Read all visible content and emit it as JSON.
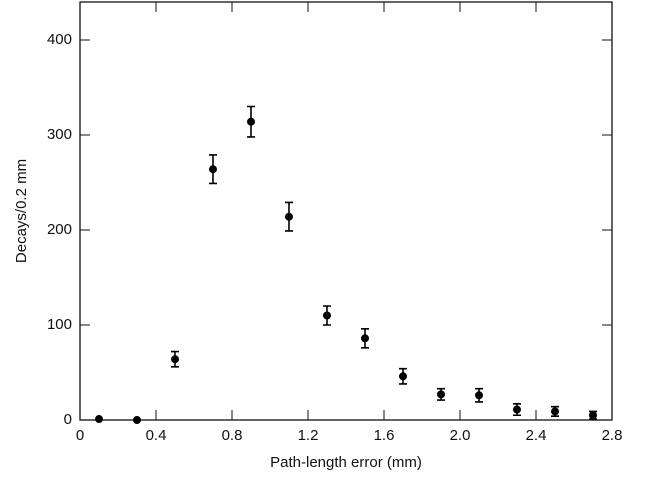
{
  "chart_data": {
    "type": "scatter",
    "xlabel": "Path-length error (mm)",
    "ylabel": "Decays/0.2 mm",
    "x": [
      0.1,
      0.3,
      0.5,
      0.7,
      0.9,
      1.1,
      1.3,
      1.5,
      1.7,
      1.9,
      2.1,
      2.3,
      2.5,
      2.7
    ],
    "series": [
      {
        "color": "#000000",
        "values": [
          1,
          0,
          64,
          264,
          314,
          214,
          110,
          86,
          46,
          27,
          26,
          11,
          9,
          5
        ],
        "errors": [
          0,
          0,
          8,
          15,
          16,
          15,
          10,
          10,
          8,
          6,
          7,
          6,
          5,
          4
        ]
      }
    ],
    "xlim": [
      0,
      2.8
    ],
    "xticks": [
      0,
      0.4,
      0.8,
      1.2,
      1.6,
      {
        "value": 2,
        "label": "2.0"
      },
      2.4,
      2.8
    ],
    "ylim": [
      0,
      440
    ],
    "yticks": [
      0,
      100,
      200,
      300,
      400
    ],
    "grid": false
  }
}
